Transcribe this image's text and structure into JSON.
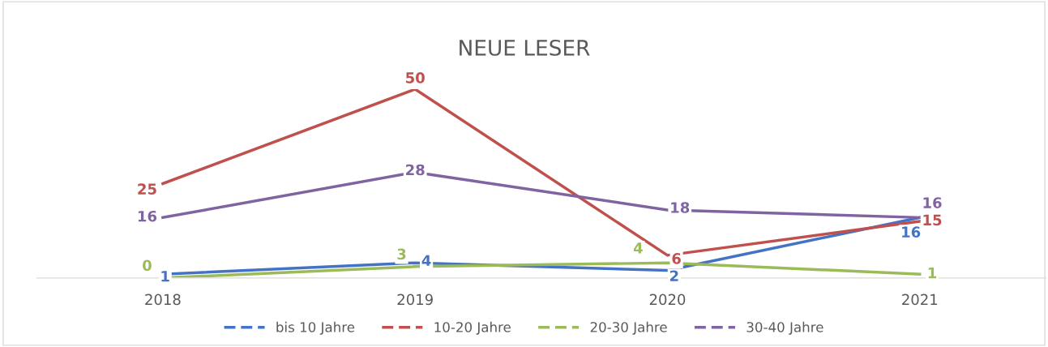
{
  "chart_data": {
    "type": "line",
    "title": "NEUE LESER",
    "categories": [
      "2018",
      "2019",
      "2020",
      "2021"
    ],
    "series": [
      {
        "name": "bis 10 Jahre",
        "color": "#4472c4",
        "values": [
          1,
          4,
          2,
          16
        ]
      },
      {
        "name": "10-20 Jahre",
        "color": "#c0504d",
        "values": [
          25,
          50,
          6,
          15
        ]
      },
      {
        "name": "20-30 Jahre",
        "color": "#9bbb59",
        "values": [
          0,
          3,
          4,
          1
        ]
      },
      {
        "name": "30-40 Jahre",
        "color": "#8064a2",
        "values": [
          16,
          28,
          18,
          16
        ]
      }
    ],
    "data_labels": true,
    "legend": "bottom",
    "grid": false,
    "line_style": "solid"
  }
}
